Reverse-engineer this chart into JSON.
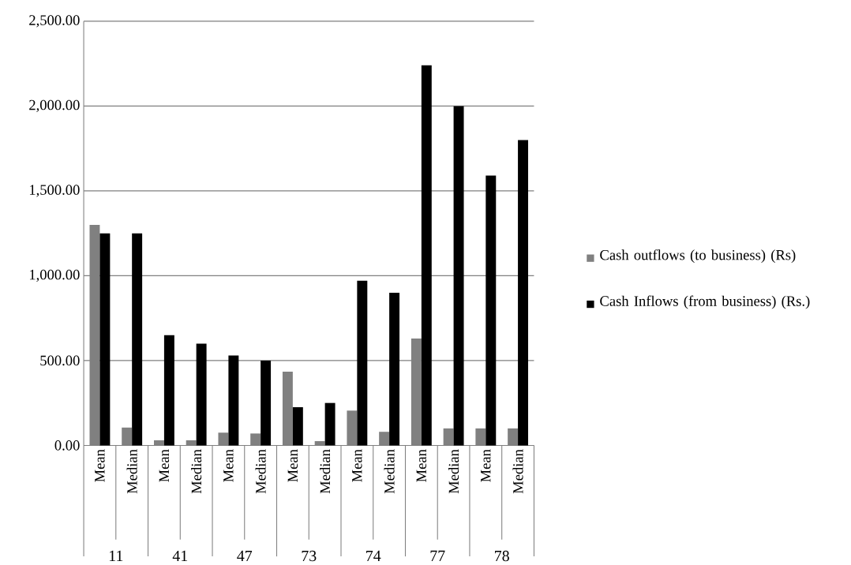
{
  "chart_data": {
    "type": "bar",
    "categories": [
      "Mean",
      "Median",
      "Mean",
      "Median",
      "Mean",
      "Median",
      "Mean",
      "Median",
      "Mean",
      "Median",
      "Mean",
      "Median",
      "Mean",
      "Median"
    ],
    "annotations": [
      "11",
      "41",
      "47",
      "73",
      "74",
      "77",
      "78"
    ],
    "series": [
      {
        "name": "Cash outflows (to business) (Rs)",
        "color": "#808080",
        "values": [
          1300,
          105,
          30,
          30,
          75,
          70,
          435,
          25,
          205,
          80,
          630,
          100,
          100,
          100
        ]
      },
      {
        "name": "Cash Inflows (from business) (Rs.)",
        "color": "#000000",
        "values": [
          1250,
          1250,
          650,
          600,
          530,
          500,
          225,
          250,
          970,
          900,
          2240,
          2000,
          1590,
          1800
        ]
      }
    ],
    "ylim": [
      0,
      2500
    ],
    "yticks": [
      {
        "value": 0,
        "label": "0.00"
      },
      {
        "value": 500,
        "label": "500.00"
      },
      {
        "value": 1000,
        "label": "1,000.00"
      },
      {
        "value": 1500,
        "label": "1,500.00"
      },
      {
        "value": 2000,
        "label": "2,000.00"
      },
      {
        "value": 2500,
        "label": "2,500.00"
      }
    ],
    "grid": "y",
    "legend": "right"
  }
}
